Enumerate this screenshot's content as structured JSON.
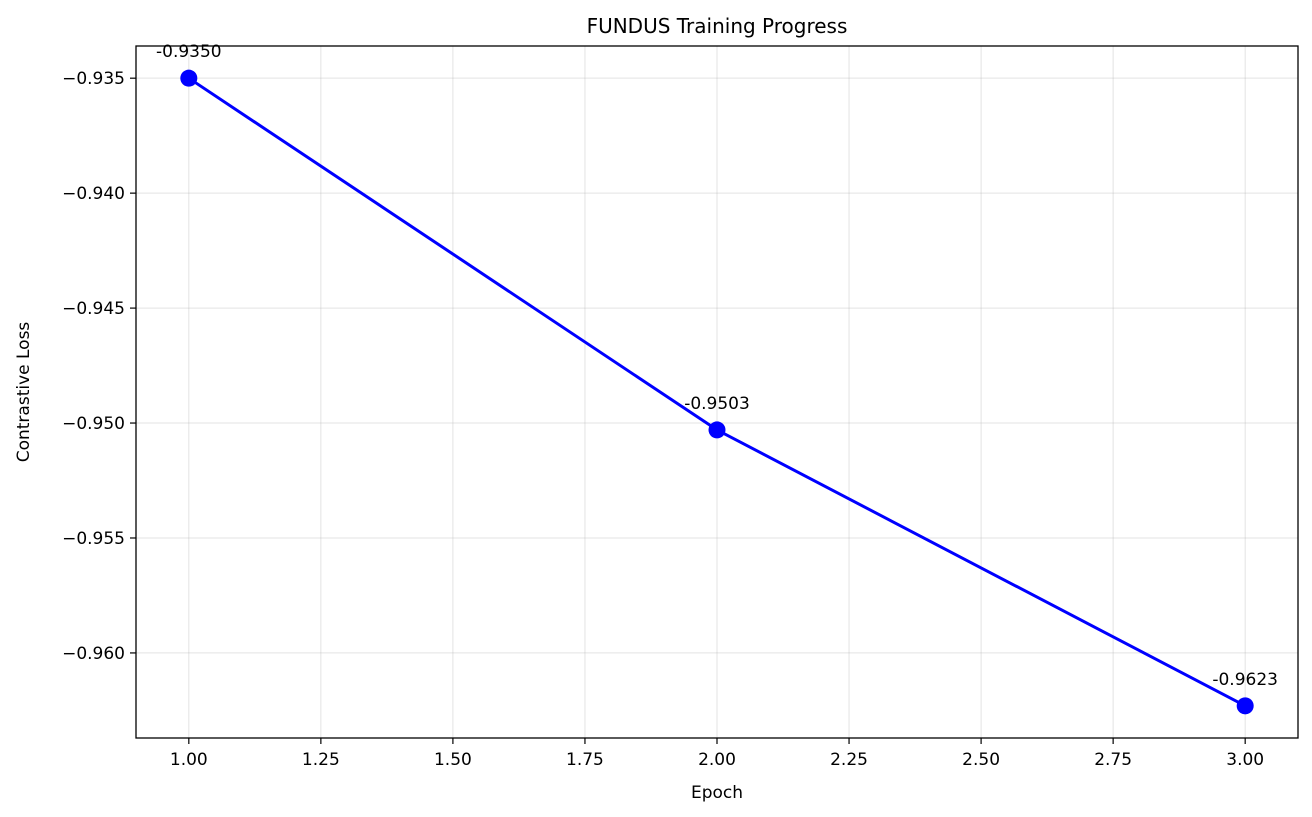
{
  "chart_data": {
    "type": "line",
    "title": "FUNDUS Training Progress",
    "xlabel": "Epoch",
    "ylabel": "Contrastive Loss",
    "xlim": [
      0.9,
      3.1
    ],
    "ylim": [
      -0.9637,
      -0.9336
    ],
    "x_ticks": [
      1.0,
      1.25,
      1.5,
      1.75,
      2.0,
      2.25,
      2.5,
      2.75,
      3.0
    ],
    "x_tick_labels": [
      "1.00",
      "1.25",
      "1.50",
      "1.75",
      "2.00",
      "2.25",
      "2.50",
      "2.75",
      "3.00"
    ],
    "y_ticks": [
      -0.935,
      -0.94,
      -0.945,
      -0.95,
      -0.955,
      -0.96
    ],
    "y_tick_labels": [
      "−0.935",
      "−0.940",
      "−0.945",
      "−0.950",
      "−0.955",
      "−0.960"
    ],
    "grid": true,
    "series": [
      {
        "x": [
          1,
          2,
          3
        ],
        "values": [
          -0.935,
          -0.9503,
          -0.9623
        ],
        "labels": [
          "-0.9350",
          "-0.9503",
          "-0.9623"
        ],
        "color": "#0000ff",
        "marker": "circle"
      }
    ]
  }
}
